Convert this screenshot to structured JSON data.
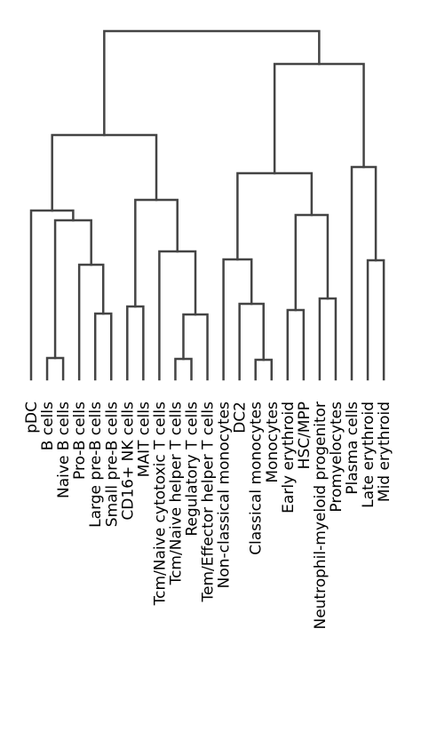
{
  "dendrogram": {
    "leaves": [
      "pDC",
      "B cells",
      "Naive B cells",
      "Pro-B cells",
      "Large pre-B cells",
      "Small pre-B cells",
      "CD16+ NK cells",
      "MAIT cells",
      "Tcm/Naive cytotoxic T cells",
      "Tcm/Naive helper T cells",
      "Regulatory T cells",
      "Tem/Effector helper T cells",
      "Non-classical monocytes",
      "DC2",
      "Classical monocytes",
      "Monocytes",
      "Early erythroid",
      "HSC/MPP",
      "Neutrophil-myeloid progenitor",
      "Promyelocytes",
      "Plasma cells",
      "Late erythroid",
      "Mid erythroid"
    ],
    "link_color": "#444444"
  }
}
